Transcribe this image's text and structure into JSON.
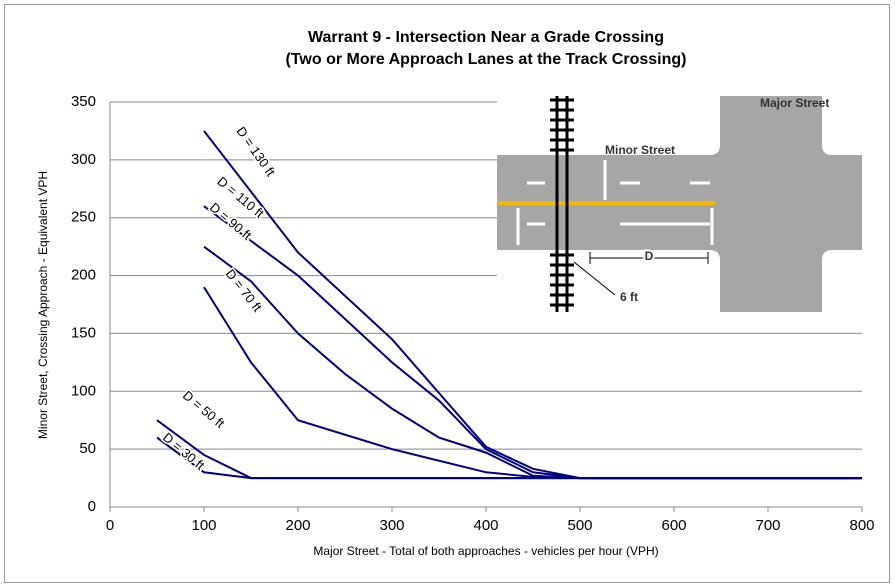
{
  "chart_data": {
    "type": "line",
    "title": "Warrant 9 - Intersection Near a Grade Crossing",
    "subtitle": "(Two or More Approach Lanes at the Track Crossing)",
    "x_label": "Major Street - Total of both approaches - vehicles per hour (VPH)",
    "y_label": "Minor Street, Crossing Approach - Equivalent VPH",
    "xlim": [
      0,
      800
    ],
    "xticks": [
      0,
      100,
      200,
      300,
      400,
      500,
      600,
      700,
      800
    ],
    "ylim": [
      0,
      350
    ],
    "yticks": [
      0,
      50,
      100,
      150,
      200,
      250,
      300,
      350
    ],
    "grid": true,
    "series": [
      {
        "name": "D = 130 ft",
        "color": "#000080",
        "x": [
          100,
          200,
          300,
          400,
          450,
          500,
          800
        ],
        "values": [
          325,
          220,
          145,
          52,
          33,
          25,
          25
        ]
      },
      {
        "name": "D = 110 ft",
        "color": "#000080",
        "x": [
          100,
          200,
          300,
          350,
          400,
          450,
          500,
          800
        ],
        "values": [
          260,
          200,
          125,
          92,
          50,
          30,
          25,
          25
        ]
      },
      {
        "name": "D = 90 ft",
        "color": "#000080",
        "x": [
          100,
          150,
          200,
          250,
          300,
          350,
          400,
          450,
          500,
          800
        ],
        "values": [
          225,
          195,
          150,
          115,
          85,
          60,
          47,
          27,
          25,
          25
        ]
      },
      {
        "name": "D = 70 ft",
        "color": "#000080",
        "x": [
          100,
          150,
          200,
          300,
          400,
          450,
          500,
          800
        ],
        "values": [
          190,
          125,
          75,
          50,
          30,
          26,
          25,
          25
        ]
      },
      {
        "name": "D = 50 ft",
        "color": "#000080",
        "x": [
          50,
          100,
          150,
          800
        ],
        "values": [
          75,
          45,
          25,
          25
        ]
      },
      {
        "name": "D = 30 ft",
        "color": "#000080",
        "x": [
          50,
          100,
          150,
          800
        ],
        "values": [
          60,
          30,
          25,
          25
        ]
      }
    ],
    "annotations": [
      "Major Street",
      "Minor Street",
      "D",
      "6 ft"
    ]
  }
}
